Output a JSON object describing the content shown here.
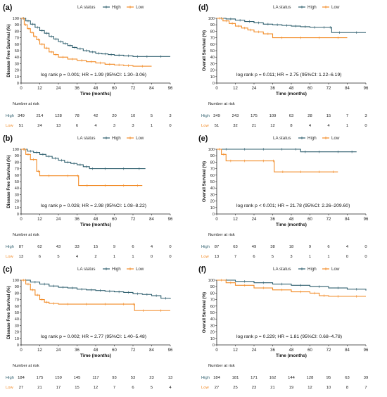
{
  "colors": {
    "high": "#2f5f6e",
    "low": "#f28c28",
    "axis": "#222222"
  },
  "chart_data": [
    {
      "panel": "(a)",
      "type": "line",
      "ylabel": "Disease Free Survival (%)",
      "xlabel": "Time (months)",
      "xlim": [
        0,
        96
      ],
      "ylim": [
        0,
        100
      ],
      "xticks": [
        0,
        12,
        24,
        36,
        48,
        60,
        72,
        84,
        96
      ],
      "yticks": [
        0,
        10,
        20,
        30,
        40,
        50,
        60,
        70,
        80,
        90,
        100
      ],
      "legend": {
        "title": "LA status",
        "entries": [
          "High",
          "Low"
        ]
      },
      "annotation": "log rank p = 0.001; HR = 1.99 (95%CI: 1.30–3.06)",
      "series": [
        {
          "name": "High",
          "x": [
            0,
            3,
            6,
            9,
            12,
            15,
            18,
            21,
            24,
            27,
            30,
            33,
            36,
            40,
            44,
            48,
            52,
            56,
            60,
            66,
            72,
            78,
            84,
            96
          ],
          "y": [
            100,
            96,
            91,
            86,
            81,
            77,
            72,
            68,
            64,
            61,
            58,
            55,
            53,
            50,
            48,
            46,
            45,
            44,
            43,
            42,
            41,
            41,
            41,
            41
          ]
        },
        {
          "name": "Low",
          "x": [
            0,
            2,
            4,
            6,
            8,
            10,
            12,
            15,
            18,
            21,
            24,
            30,
            36,
            42,
            48,
            54,
            60,
            66,
            72,
            84
          ],
          "y": [
            100,
            90,
            84,
            78,
            72,
            67,
            60,
            54,
            48,
            44,
            40,
            37,
            35,
            33,
            31,
            29,
            28,
            27,
            26,
            26
          ]
        }
      ],
      "risk_table": {
        "title": "Number at risk",
        "labels": [
          "High",
          "Low"
        ],
        "values": [
          [
            "349",
            "214",
            "128",
            "78",
            "42",
            "20",
            "10",
            "5",
            "3"
          ],
          [
            "51",
            "24",
            "13",
            "6",
            "4",
            "3",
            "3",
            "1",
            "0"
          ]
        ]
      }
    },
    {
      "panel": "(d)",
      "type": "line",
      "ylabel": "Overall Survival (%)",
      "xlabel": "Time (months)",
      "xlim": [
        0,
        96
      ],
      "ylim": [
        0,
        100
      ],
      "xticks": [
        0,
        12,
        24,
        36,
        48,
        60,
        72,
        84,
        96
      ],
      "yticks": [
        0,
        10,
        20,
        30,
        40,
        50,
        60,
        70,
        80,
        90,
        100
      ],
      "legend": {
        "title": "LA status",
        "entries": [
          "High",
          "Low"
        ]
      },
      "annotation": "log rank p = 0.011; HR = 2.75 (95%CI: 1.22–6.19)",
      "series": [
        {
          "name": "High",
          "x": [
            0,
            6,
            12,
            18,
            24,
            30,
            36,
            42,
            48,
            54,
            60,
            66,
            72,
            74,
            84,
            96
          ],
          "y": [
            100,
            99,
            97,
            95,
            93,
            91,
            90,
            89,
            88,
            87,
            86,
            86,
            86,
            78,
            78,
            78
          ]
        },
        {
          "name": "Low",
          "x": [
            0,
            4,
            8,
            12,
            16,
            20,
            24,
            30,
            36,
            48,
            60,
            72,
            84
          ],
          "y": [
            100,
            96,
            92,
            88,
            85,
            82,
            79,
            76,
            70,
            70,
            70,
            70,
            70
          ]
        }
      ],
      "risk_table": {
        "title": "Number at risk",
        "labels": [
          "High",
          "Low"
        ],
        "values": [
          [
            "349",
            "243",
            "175",
            "109",
            "63",
            "28",
            "15",
            "7",
            "3"
          ],
          [
            "51",
            "32",
            "21",
            "12",
            "8",
            "4",
            "4",
            "1",
            "0"
          ]
        ]
      }
    },
    {
      "panel": "(b)",
      "type": "line",
      "ylabel": "Disease Free Survival (%)",
      "xlabel": "Time (months)",
      "xlim": [
        0,
        96
      ],
      "ylim": [
        0,
        100
      ],
      "xticks": [
        0,
        12,
        24,
        36,
        48,
        60,
        72,
        84,
        96
      ],
      "yticks": [
        0,
        10,
        20,
        30,
        40,
        50,
        60,
        70,
        80,
        90,
        100
      ],
      "legend": {
        "title": "LA status",
        "entries": [
          "High",
          "Low"
        ]
      },
      "annotation": "log rank p = 0.026; HR = 2.98 (95%CI: 1.08–8.22)",
      "series": [
        {
          "name": "High",
          "x": [
            0,
            4,
            8,
            12,
            16,
            20,
            24,
            28,
            32,
            36,
            40,
            44,
            48,
            60,
            72,
            80
          ],
          "y": [
            100,
            97,
            95,
            92,
            89,
            86,
            83,
            80,
            78,
            76,
            73,
            70,
            70,
            70,
            70,
            70
          ]
        },
        {
          "name": "Low",
          "x": [
            0,
            3,
            6,
            10,
            12,
            24,
            36,
            37,
            48,
            60,
            72,
            78
          ],
          "y": [
            100,
            92,
            84,
            66,
            59,
            59,
            59,
            44,
            44,
            44,
            44,
            44
          ]
        }
      ],
      "risk_table": {
        "title": "Number at risk",
        "labels": [
          "High",
          "Low"
        ],
        "values": [
          [
            "87",
            "62",
            "43",
            "33",
            "15",
            "9",
            "6",
            "4",
            "0"
          ],
          [
            "13",
            "6",
            "5",
            "4",
            "2",
            "1",
            "1",
            "0",
            "0"
          ]
        ]
      }
    },
    {
      "panel": "(e)",
      "type": "line",
      "ylabel": "Overall Survival (%)",
      "xlabel": "Time (months)",
      "xlim": [
        0,
        96
      ],
      "ylim": [
        0,
        100
      ],
      "xticks": [
        0,
        12,
        24,
        36,
        48,
        60,
        72,
        84,
        96
      ],
      "yticks": [
        0,
        10,
        20,
        30,
        40,
        50,
        60,
        70,
        80,
        90,
        100
      ],
      "legend": {
        "title": "LA status",
        "entries": [
          "High",
          "Low"
        ]
      },
      "annotation": "log rank p < 0.001; HR = 21.78 (95%CI: 2.26–209.60)",
      "series": [
        {
          "name": "High",
          "x": [
            0,
            12,
            24,
            36,
            48,
            54,
            60,
            72,
            84,
            90
          ],
          "y": [
            100,
            100,
            100,
            100,
            100,
            96,
            96,
            96,
            96,
            96
          ]
        },
        {
          "name": "Low",
          "x": [
            0,
            3,
            6,
            12,
            24,
            36,
            37,
            48,
            60,
            72,
            78
          ],
          "y": [
            100,
            92,
            82,
            82,
            82,
            82,
            65,
            65,
            65,
            65,
            65
          ]
        }
      ],
      "risk_table": {
        "title": "Number at risk",
        "labels": [
          "High",
          "Low"
        ],
        "values": [
          [
            "87",
            "63",
            "49",
            "38",
            "18",
            "9",
            "6",
            "4",
            "0"
          ],
          [
            "13",
            "7",
            "6",
            "5",
            "3",
            "1",
            "1",
            "0",
            "0"
          ]
        ]
      }
    },
    {
      "panel": "(c)",
      "type": "line",
      "ylabel": "Disease Free Survival (%)",
      "xlabel": "Time (months)",
      "xlim": [
        0,
        96
      ],
      "ylim": [
        0,
        100
      ],
      "xticks": [
        0,
        12,
        24,
        36,
        48,
        60,
        72,
        84,
        96
      ],
      "yticks": [
        0,
        10,
        20,
        30,
        40,
        50,
        60,
        70,
        80,
        90,
        100
      ],
      "legend": {
        "title": "LA status",
        "entries": [
          "High",
          "Low"
        ]
      },
      "annotation": "log rank p = 0.002; HR = 2.77 (95%CI: 1.40–5.48)",
      "series": [
        {
          "name": "High",
          "x": [
            0,
            6,
            12,
            18,
            24,
            30,
            36,
            42,
            48,
            54,
            60,
            66,
            72,
            78,
            84,
            90,
            96
          ],
          "y": [
            100,
            97,
            94,
            91,
            89,
            88,
            86,
            85,
            84,
            83,
            82,
            81,
            79,
            78,
            76,
            72,
            71
          ]
        },
        {
          "name": "Low",
          "x": [
            0,
            3,
            6,
            9,
            12,
            15,
            18,
            24,
            36,
            48,
            60,
            72,
            73,
            84,
            96
          ],
          "y": [
            100,
            94,
            85,
            77,
            70,
            66,
            64,
            63,
            63,
            63,
            63,
            63,
            53,
            53,
            53
          ]
        }
      ],
      "risk_table": {
        "title": "Number at risk",
        "labels": [
          "High",
          "Low"
        ],
        "values": [
          [
            "184",
            "175",
            "159",
            "145",
            "117",
            "93",
            "53",
            "23",
            "13"
          ],
          [
            "27",
            "21",
            "17",
            "15",
            "12",
            "7",
            "6",
            "5",
            "4"
          ]
        ]
      }
    },
    {
      "panel": "(f)",
      "type": "line",
      "ylabel": "Overall Survival (%)",
      "xlabel": "Time (months)",
      "xlim": [
        0,
        96
      ],
      "ylim": [
        0,
        100
      ],
      "xticks": [
        0,
        12,
        24,
        36,
        48,
        60,
        72,
        84,
        96
      ],
      "yticks": [
        0,
        10,
        20,
        30,
        40,
        50,
        60,
        70,
        80,
        90,
        100
      ],
      "legend": {
        "title": "LA status",
        "entries": [
          "High",
          "Low"
        ]
      },
      "annotation": "log rank p = 0.229; HR = 1.81 (95%CI: 0.68–4.78)",
      "series": [
        {
          "name": "High",
          "x": [
            0,
            12,
            24,
            36,
            48,
            60,
            72,
            84,
            96
          ],
          "y": [
            100,
            98,
            96,
            94,
            92,
            90,
            88,
            86,
            84
          ]
        },
        {
          "name": "Low",
          "x": [
            0,
            6,
            12,
            24,
            36,
            48,
            60,
            66,
            72,
            84,
            96
          ],
          "y": [
            100,
            96,
            92,
            88,
            85,
            82,
            80,
            76,
            75,
            75,
            75
          ]
        }
      ],
      "risk_table": {
        "title": "Number at risk",
        "labels": [
          "High",
          "Low"
        ],
        "values": [
          [
            "184",
            "181",
            "171",
            "162",
            "144",
            "128",
            "95",
            "63",
            "39"
          ],
          [
            "27",
            "25",
            "23",
            "21",
            "19",
            "12",
            "10",
            "8",
            "7"
          ]
        ]
      }
    }
  ]
}
